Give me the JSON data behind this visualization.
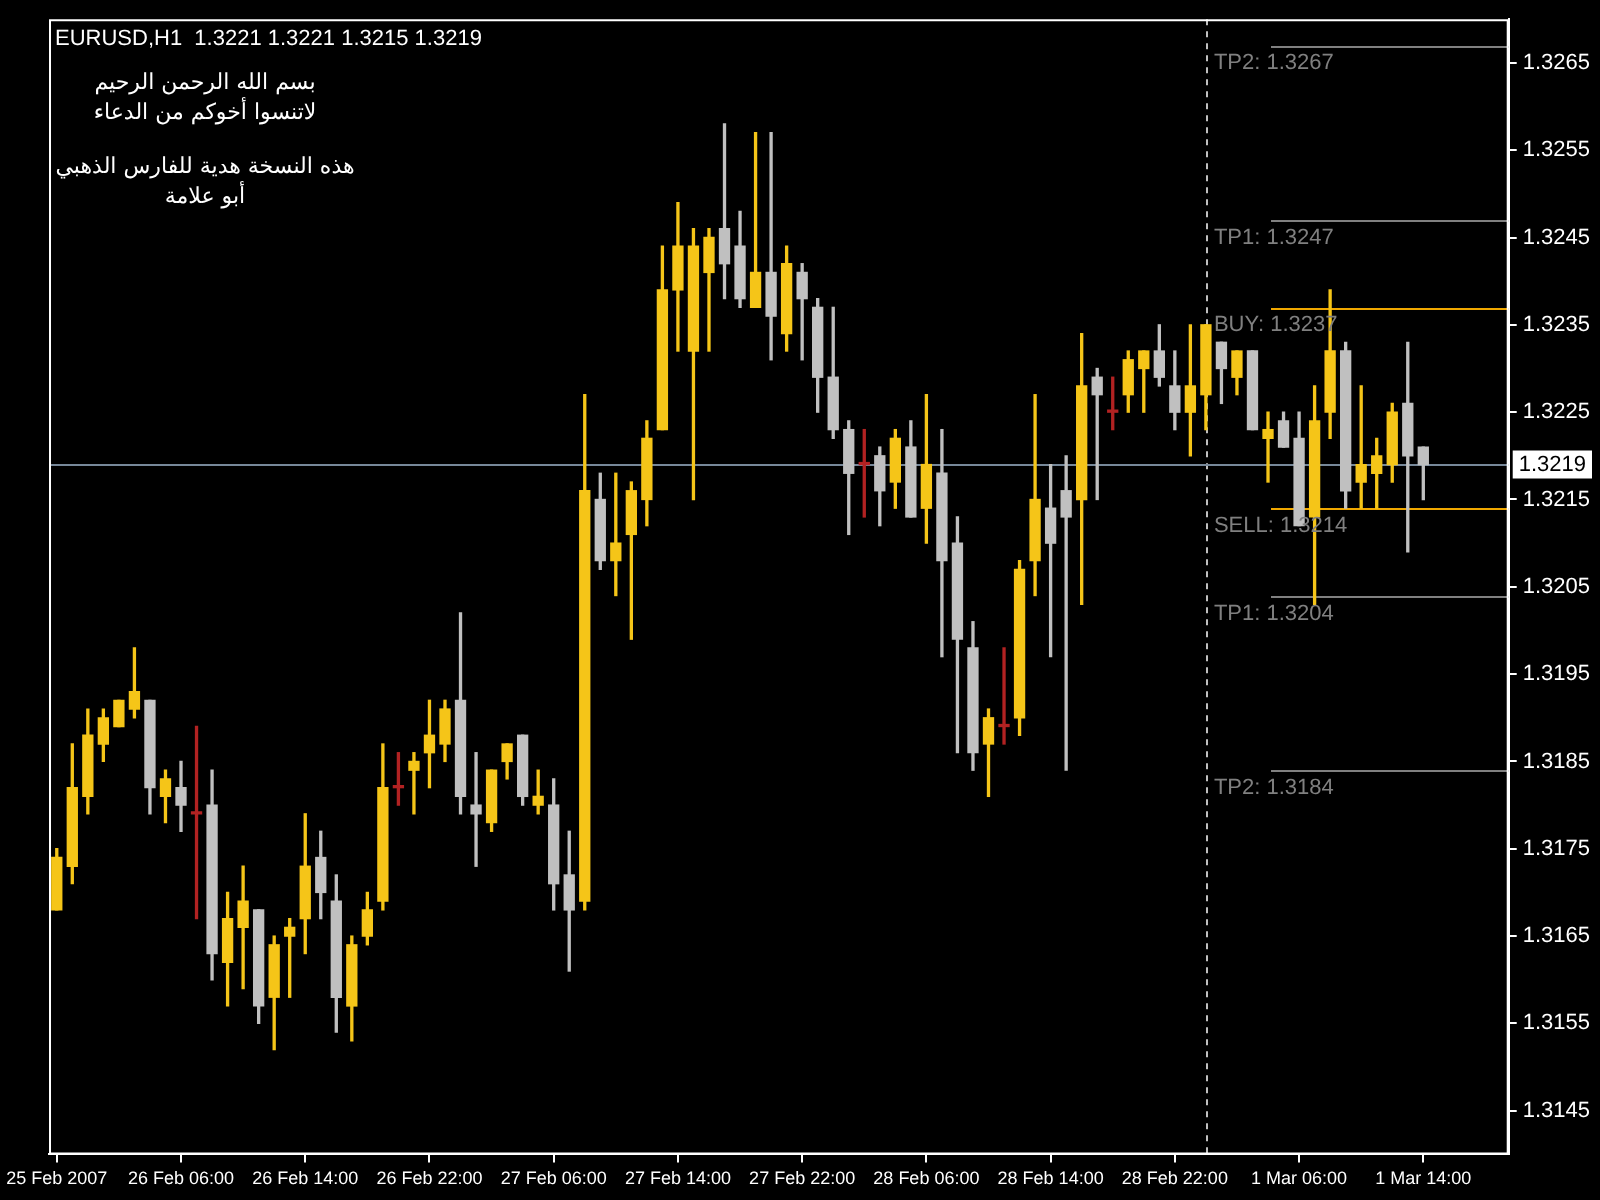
{
  "chart_data": {
    "type": "candlestick",
    "title": "EURUSD,H1  1.3221 1.3221 1.3215 1.3219",
    "annotations": [
      "بسم الله الرحمن الرحيم",
      "لاتنسوا أخوكم من الدعاء",
      "هذه النسخة هدية للفارس الذهبي",
      "أبو علامة"
    ],
    "x": [
      "2007-02-25T22:00",
      "2007-02-25T23:00",
      "2007-02-26T00:00",
      "2007-02-26T01:00",
      "2007-02-26T02:00",
      "2007-02-26T03:00",
      "2007-02-26T04:00",
      "2007-02-26T05:00",
      "2007-02-26T06:00",
      "2007-02-26T07:00",
      "2007-02-26T08:00",
      "2007-02-26T09:00",
      "2007-02-26T10:00",
      "2007-02-26T11:00",
      "2007-02-26T12:00",
      "2007-02-26T13:00",
      "2007-02-26T14:00",
      "2007-02-26T15:00",
      "2007-02-26T16:00",
      "2007-02-26T17:00",
      "2007-02-26T18:00",
      "2007-02-26T19:00",
      "2007-02-26T20:00",
      "2007-02-26T21:00",
      "2007-02-26T22:00",
      "2007-02-26T23:00",
      "2007-02-27T00:00",
      "2007-02-27T01:00",
      "2007-02-27T02:00",
      "2007-02-27T03:00",
      "2007-02-27T04:00",
      "2007-02-27T05:00",
      "2007-02-27T06:00",
      "2007-02-27T07:00",
      "2007-02-27T08:00",
      "2007-02-27T09:00",
      "2007-02-27T10:00",
      "2007-02-27T11:00",
      "2007-02-27T12:00",
      "2007-02-27T13:00",
      "2007-02-27T14:00",
      "2007-02-27T15:00",
      "2007-02-27T16:00",
      "2007-02-27T17:00",
      "2007-02-27T18:00",
      "2007-02-27T19:00",
      "2007-02-27T20:00",
      "2007-02-27T21:00",
      "2007-02-27T22:00",
      "2007-02-27T23:00",
      "2007-02-28T00:00",
      "2007-02-28T01:00",
      "2007-02-28T02:00",
      "2007-02-28T03:00",
      "2007-02-28T04:00",
      "2007-02-28T05:00",
      "2007-02-28T06:00",
      "2007-02-28T07:00",
      "2007-02-28T08:00",
      "2007-02-28T09:00",
      "2007-02-28T10:00",
      "2007-02-28T11:00",
      "2007-02-28T12:00",
      "2007-02-28T13:00",
      "2007-02-28T14:00",
      "2007-02-28T15:00",
      "2007-02-28T16:00",
      "2007-02-28T17:00",
      "2007-02-28T18:00",
      "2007-02-28T19:00",
      "2007-02-28T20:00",
      "2007-02-28T21:00",
      "2007-02-28T22:00",
      "2007-02-28T23:00",
      "2007-03-01T00:00",
      "2007-03-01T01:00",
      "2007-03-01T02:00",
      "2007-03-01T03:00",
      "2007-03-01T04:00",
      "2007-03-01T05:00",
      "2007-03-01T06:00",
      "2007-03-01T07:00",
      "2007-03-01T08:00",
      "2007-03-01T09:00",
      "2007-03-01T10:00",
      "2007-03-01T11:00",
      "2007-03-01T12:00",
      "2007-03-01T13:00",
      "2007-03-01T14:00"
    ],
    "ohlc": [
      [
        1.3168,
        1.3175,
        1.3168,
        1.3174
      ],
      [
        1.3173,
        1.3187,
        1.3171,
        1.3182
      ],
      [
        1.3181,
        1.3191,
        1.3179,
        1.3188
      ],
      [
        1.3187,
        1.3191,
        1.3185,
        1.319
      ],
      [
        1.3189,
        1.3192,
        1.3189,
        1.3192
      ],
      [
        1.3191,
        1.3198,
        1.319,
        1.3193
      ],
      [
        1.3192,
        1.3192,
        1.3179,
        1.3182
      ],
      [
        1.3181,
        1.3184,
        1.3178,
        1.3183
      ],
      [
        1.3182,
        1.3185,
        1.3177,
        1.318
      ],
      [
        1.3179,
        1.3189,
        1.3167,
        1.3179
      ],
      [
        1.318,
        1.3184,
        1.316,
        1.3163
      ],
      [
        1.3162,
        1.317,
        1.3157,
        1.3167
      ],
      [
        1.3166,
        1.3173,
        1.3159,
        1.3169
      ],
      [
        1.3168,
        1.3168,
        1.3155,
        1.3157
      ],
      [
        1.3158,
        1.3165,
        1.3152,
        1.3164
      ],
      [
        1.3165,
        1.3167,
        1.3158,
        1.3166
      ],
      [
        1.3167,
        1.3179,
        1.3163,
        1.3173
      ],
      [
        1.3174,
        1.3177,
        1.3167,
        1.317
      ],
      [
        1.3169,
        1.3172,
        1.3154,
        1.3158
      ],
      [
        1.3157,
        1.3165,
        1.3153,
        1.3164
      ],
      [
        1.3165,
        1.317,
        1.3164,
        1.3168
      ],
      [
        1.3169,
        1.3187,
        1.3168,
        1.3182
      ],
      [
        1.3182,
        1.3186,
        1.318,
        1.3182
      ],
      [
        1.3184,
        1.3186,
        1.3179,
        1.3185
      ],
      [
        1.3186,
        1.3192,
        1.3182,
        1.3188
      ],
      [
        1.3187,
        1.3192,
        1.3185,
        1.3191
      ],
      [
        1.3192,
        1.3202,
        1.3179,
        1.3181
      ],
      [
        1.318,
        1.3186,
        1.3173,
        1.3179
      ],
      [
        1.3178,
        1.3184,
        1.3177,
        1.3184
      ],
      [
        1.3185,
        1.3187,
        1.3183,
        1.3187
      ],
      [
        1.3188,
        1.3188,
        1.318,
        1.3181
      ],
      [
        1.318,
        1.3184,
        1.3179,
        1.3181
      ],
      [
        1.318,
        1.3183,
        1.3168,
        1.3171
      ],
      [
        1.3172,
        1.3177,
        1.3161,
        1.3168
      ],
      [
        1.3169,
        1.3227,
        1.3168,
        1.3216
      ],
      [
        1.3215,
        1.3218,
        1.3207,
        1.3208
      ],
      [
        1.3208,
        1.3218,
        1.3204,
        1.321
      ],
      [
        1.3211,
        1.3217,
        1.3199,
        1.3216
      ],
      [
        1.3215,
        1.3224,
        1.3212,
        1.3222
      ],
      [
        1.3223,
        1.3244,
        1.3223,
        1.3239
      ],
      [
        1.3239,
        1.3249,
        1.3232,
        1.3244
      ],
      [
        1.3232,
        1.3246,
        1.3215,
        1.3244
      ],
      [
        1.3241,
        1.3246,
        1.3232,
        1.3245
      ],
      [
        1.3246,
        1.3258,
        1.3238,
        1.3242
      ],
      [
        1.3244,
        1.3248,
        1.3237,
        1.3238
      ],
      [
        1.3237,
        1.3257,
        1.3237,
        1.3241
      ],
      [
        1.3241,
        1.3257,
        1.3231,
        1.3236
      ],
      [
        1.3234,
        1.3244,
        1.3232,
        1.3242
      ],
      [
        1.3241,
        1.3242,
        1.3231,
        1.3238
      ],
      [
        1.3237,
        1.3238,
        1.3225,
        1.3229
      ],
      [
        1.3229,
        1.3237,
        1.3222,
        1.3223
      ],
      [
        1.3223,
        1.3224,
        1.3211,
        1.3218
      ],
      [
        1.3219,
        1.3223,
        1.3213,
        1.3219
      ],
      [
        1.322,
        1.3221,
        1.3212,
        1.3216
      ],
      [
        1.3217,
        1.3223,
        1.3214,
        1.3222
      ],
      [
        1.3221,
        1.3224,
        1.3213,
        1.3213
      ],
      [
        1.3214,
        1.3227,
        1.321,
        1.3219
      ],
      [
        1.3218,
        1.3223,
        1.3197,
        1.3208
      ],
      [
        1.321,
        1.3213,
        1.3186,
        1.3199
      ],
      [
        1.3198,
        1.3201,
        1.3184,
        1.3186
      ],
      [
        1.3187,
        1.3191,
        1.3181,
        1.319
      ],
      [
        1.3189,
        1.3198,
        1.3187,
        1.3189
      ],
      [
        1.319,
        1.3208,
        1.3188,
        1.3207
      ],
      [
        1.3208,
        1.3227,
        1.3204,
        1.3215
      ],
      [
        1.3214,
        1.3219,
        1.3197,
        1.321
      ],
      [
        1.3216,
        1.322,
        1.3184,
        1.3213
      ],
      [
        1.3215,
        1.3234,
        1.3203,
        1.3228
      ],
      [
        1.3229,
        1.323,
        1.3215,
        1.3227
      ],
      [
        1.3225,
        1.3229,
        1.3223,
        1.3225
      ],
      [
        1.3227,
        1.3232,
        1.3225,
        1.3231
      ],
      [
        1.323,
        1.3232,
        1.3225,
        1.3232
      ],
      [
        1.3232,
        1.3235,
        1.3228,
        1.3229
      ],
      [
        1.3228,
        1.3232,
        1.3223,
        1.3225
      ],
      [
        1.3225,
        1.3235,
        1.322,
        1.3228
      ],
      [
        1.3227,
        1.3235,
        1.3223,
        1.3235
      ],
      [
        1.3233,
        1.3233,
        1.3226,
        1.323
      ],
      [
        1.3229,
        1.3232,
        1.3227,
        1.3232
      ],
      [
        1.3232,
        1.3232,
        1.3223,
        1.3223
      ],
      [
        1.3222,
        1.3225,
        1.3217,
        1.3223
      ],
      [
        1.3224,
        1.3225,
        1.3221,
        1.3221
      ],
      [
        1.3222,
        1.3225,
        1.3212,
        1.3212
      ],
      [
        1.3213,
        1.3228,
        1.3203,
        1.3224
      ],
      [
        1.3225,
        1.3239,
        1.3222,
        1.3232
      ],
      [
        1.3232,
        1.3233,
        1.3214,
        1.3216
      ],
      [
        1.3217,
        1.3228,
        1.3214,
        1.3219
      ],
      [
        1.3218,
        1.3222,
        1.3214,
        1.322
      ],
      [
        1.3219,
        1.3226,
        1.3217,
        1.3225
      ],
      [
        1.3226,
        1.3233,
        1.3209,
        1.322
      ],
      [
        1.3221,
        1.3221,
        1.3215,
        1.3219
      ]
    ],
    "colors": [
      "#f5c518",
      "#f5c518",
      "#f5c518",
      "#f5c518",
      "#f5c518",
      "#f5c518",
      "#c0c0c0",
      "#f5c518",
      "#c0c0c0",
      "#b22222",
      "#c0c0c0",
      "#f5c518",
      "#f5c518",
      "#c0c0c0",
      "#f5c518",
      "#f5c518",
      "#f5c518",
      "#c0c0c0",
      "#c0c0c0",
      "#f5c518",
      "#f5c518",
      "#f5c518",
      "#b22222",
      "#f5c518",
      "#f5c518",
      "#f5c518",
      "#c0c0c0",
      "#c0c0c0",
      "#f5c518",
      "#f5c518",
      "#c0c0c0",
      "#f5c518",
      "#c0c0c0",
      "#c0c0c0",
      "#f5c518",
      "#c0c0c0",
      "#f5c518",
      "#f5c518",
      "#f5c518",
      "#f5c518",
      "#f5c518",
      "#f5c518",
      "#f5c518",
      "#c0c0c0",
      "#c0c0c0",
      "#f5c518",
      "#c0c0c0",
      "#f5c518",
      "#c0c0c0",
      "#c0c0c0",
      "#c0c0c0",
      "#c0c0c0",
      "#b22222",
      "#c0c0c0",
      "#f5c518",
      "#c0c0c0",
      "#f5c518",
      "#c0c0c0",
      "#c0c0c0",
      "#c0c0c0",
      "#f5c518",
      "#b22222",
      "#f5c518",
      "#f5c518",
      "#c0c0c0",
      "#c0c0c0",
      "#f5c518",
      "#c0c0c0",
      "#b22222",
      "#f5c518",
      "#f5c518",
      "#c0c0c0",
      "#c0c0c0",
      "#f5c518",
      "#f5c518",
      "#c0c0c0",
      "#f5c518",
      "#c0c0c0",
      "#f5c518",
      "#c0c0c0",
      "#c0c0c0",
      "#f5c518",
      "#f5c518",
      "#c0c0c0",
      "#f5c518",
      "#f5c518",
      "#f5c518",
      "#c0c0c0",
      "#c0c0c0"
    ],
    "xlim": [
      "2007-02-25T21:30",
      "2007-03-01T19:30"
    ],
    "xticks": [
      {
        "value": "2007-02-25T22:00",
        "label": "25 Feb 2007"
      },
      {
        "value": "2007-02-26T06:00",
        "label": "26 Feb 06:00"
      },
      {
        "value": "2007-02-26T14:00",
        "label": "26 Feb 14:00"
      },
      {
        "value": "2007-02-26T22:00",
        "label": "26 Feb 22:00"
      },
      {
        "value": "2007-02-27T06:00",
        "label": "27 Feb 06:00"
      },
      {
        "value": "2007-02-27T14:00",
        "label": "27 Feb 14:00"
      },
      {
        "value": "2007-02-27T22:00",
        "label": "27 Feb 22:00"
      },
      {
        "value": "2007-02-28T06:00",
        "label": "28 Feb 06:00"
      },
      {
        "value": "2007-02-28T14:00",
        "label": "28 Feb 14:00"
      },
      {
        "value": "2007-02-28T22:00",
        "label": "28 Feb 22:00"
      },
      {
        "value": "2007-03-01T06:00",
        "label": "1 Mar 06:00"
      },
      {
        "value": "2007-03-01T14:00",
        "label": "1 Mar 14:00"
      }
    ],
    "ylim": [
      1.314,
      1.327
    ],
    "yticks": [
      1.3145,
      1.3155,
      1.3165,
      1.3175,
      1.3185,
      1.3195,
      1.3205,
      1.3215,
      1.3225,
      1.3235,
      1.3245,
      1.3255,
      1.3265
    ],
    "ref_lines": [
      {
        "axis": "x",
        "value": "2007-03-01T00:00",
        "color": "#c0c0c0",
        "line_style": "dashed"
      },
      {
        "axis": "y",
        "value": 1.3267,
        "label": "TP2: 1.3267",
        "color": "#808080"
      },
      {
        "axis": "y",
        "value": 1.3247,
        "label": "TP1: 1.3247",
        "color": "#808080"
      },
      {
        "axis": "y",
        "value": 1.3237,
        "label": "BUY: 1.3237",
        "color": "#f0a800"
      },
      {
        "axis": "y",
        "value": 1.3214,
        "label": "SELL: 1.3214",
        "color": "#f0a800"
      },
      {
        "axis": "y",
        "value": 1.3204,
        "label": "TP1: 1.3204",
        "color": "#808080"
      },
      {
        "axis": "y",
        "value": 1.3184,
        "label": "TP2: 1.3184",
        "color": "#808080"
      },
      {
        "axis": "y",
        "value": 1.3219,
        "label": "1.3219",
        "color": "#778899"
      }
    ],
    "grid": false,
    "legend": false
  }
}
